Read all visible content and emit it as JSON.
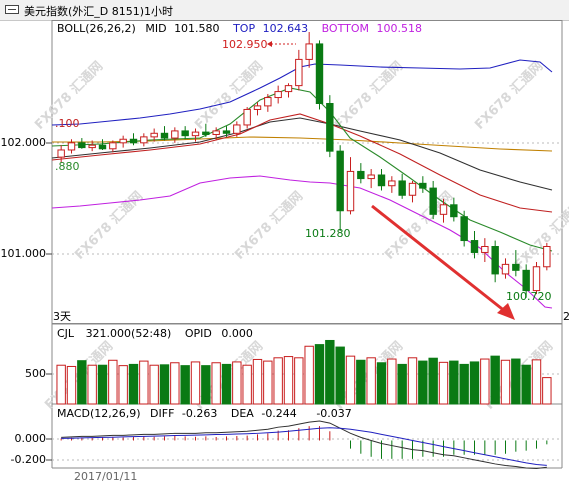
{
  "window": {
    "title": "美元指数(外汇_D 8151)1小时"
  },
  "boll": {
    "name": "BOLL(26,26,2)",
    "mid_label": "MID",
    "mid_value": "101.580",
    "top_label": "TOP",
    "top_value": "102.643",
    "bottom_label": "BOTTOM",
    "bottom_value": "100.518"
  },
  "price_axis": {
    "top": "102.000",
    "bottom": "101.000"
  },
  "edge_labels": {
    "left_top": ".100",
    "left_bottom": ".880",
    "right_corner": "2",
    "period": "3天"
  },
  "annotations": {
    "high": "102.950",
    "low1": "101.280",
    "low2": "100.720"
  },
  "volume": {
    "name": "CJL",
    "value": "321.000(52:48)",
    "opid_label": "OPID",
    "opid_value": "0.000",
    "axis": "500"
  },
  "macd": {
    "name": "MACD(12,26,9)",
    "diff_label": "DIFF",
    "diff_value": "-0.263",
    "dea_label": "DEA",
    "dea_value": "-0.244",
    "macd_value": "-0.037",
    "axis_top": "0.000",
    "axis_bottom": "-0.200"
  },
  "date_axis": {
    "date": "2017/01/11"
  },
  "watermark": "FX678 汇通网",
  "colors": {
    "up": "#c81e1e",
    "down": "#0a7a14",
    "top_band": "#2020c0",
    "bottom_band": "#c020e0",
    "mid": "#c08000",
    "annotation_high": "#d02020",
    "annotation_low": "#0a7a14",
    "arrow": "#e03030"
  },
  "chart_data": {
    "type": "candlestick",
    "title": "美元指数(外汇_D 8151)1小时",
    "ylim": [
      100.55,
      102.95
    ],
    "candles": [
      {
        "o": 101.9,
        "h": 102.0,
        "l": 101.85,
        "c": 101.96
      },
      {
        "o": 101.96,
        "h": 102.05,
        "l": 101.93,
        "c": 102.02
      },
      {
        "o": 102.02,
        "h": 102.06,
        "l": 101.97,
        "c": 101.98
      },
      {
        "o": 101.98,
        "h": 102.04,
        "l": 101.95,
        "c": 102.0
      },
      {
        "o": 102.0,
        "h": 102.05,
        "l": 101.96,
        "c": 101.97
      },
      {
        "o": 101.97,
        "h": 102.04,
        "l": 101.94,
        "c": 102.02
      },
      {
        "o": 102.02,
        "h": 102.08,
        "l": 101.98,
        "c": 102.05
      },
      {
        "o": 102.05,
        "h": 102.1,
        "l": 102.0,
        "c": 102.02
      },
      {
        "o": 102.02,
        "h": 102.1,
        "l": 101.99,
        "c": 102.07
      },
      {
        "o": 102.07,
        "h": 102.14,
        "l": 102.03,
        "c": 102.1
      },
      {
        "o": 102.1,
        "h": 102.16,
        "l": 102.04,
        "c": 102.06
      },
      {
        "o": 102.06,
        "h": 102.15,
        "l": 102.02,
        "c": 102.12
      },
      {
        "o": 102.12,
        "h": 102.16,
        "l": 102.05,
        "c": 102.08
      },
      {
        "o": 102.08,
        "h": 102.14,
        "l": 102.03,
        "c": 102.11
      },
      {
        "o": 102.11,
        "h": 102.18,
        "l": 102.07,
        "c": 102.09
      },
      {
        "o": 102.09,
        "h": 102.15,
        "l": 102.04,
        "c": 102.12
      },
      {
        "o": 102.12,
        "h": 102.16,
        "l": 102.07,
        "c": 102.1
      },
      {
        "o": 102.1,
        "h": 102.2,
        "l": 102.07,
        "c": 102.17
      },
      {
        "o": 102.17,
        "h": 102.32,
        "l": 102.14,
        "c": 102.3
      },
      {
        "o": 102.3,
        "h": 102.36,
        "l": 102.25,
        "c": 102.33
      },
      {
        "o": 102.33,
        "h": 102.43,
        "l": 102.28,
        "c": 102.4
      },
      {
        "o": 102.4,
        "h": 102.5,
        "l": 102.35,
        "c": 102.45
      },
      {
        "o": 102.45,
        "h": 102.52,
        "l": 102.4,
        "c": 102.5
      },
      {
        "o": 102.5,
        "h": 102.8,
        "l": 102.46,
        "c": 102.72
      },
      {
        "o": 102.72,
        "h": 102.95,
        "l": 102.65,
        "c": 102.85
      },
      {
        "o": 102.85,
        "h": 102.88,
        "l": 102.3,
        "c": 102.35
      },
      {
        "o": 102.35,
        "h": 102.42,
        "l": 101.9,
        "c": 101.95
      },
      {
        "o": 101.95,
        "h": 102.0,
        "l": 101.28,
        "c": 101.45
      },
      {
        "o": 101.45,
        "h": 101.9,
        "l": 101.42,
        "c": 101.78
      },
      {
        "o": 101.78,
        "h": 101.85,
        "l": 101.68,
        "c": 101.72
      },
      {
        "o": 101.72,
        "h": 101.8,
        "l": 101.64,
        "c": 101.75
      },
      {
        "o": 101.75,
        "h": 101.8,
        "l": 101.62,
        "c": 101.66
      },
      {
        "o": 101.66,
        "h": 101.74,
        "l": 101.6,
        "c": 101.7
      },
      {
        "o": 101.7,
        "h": 101.76,
        "l": 101.55,
        "c": 101.58
      },
      {
        "o": 101.58,
        "h": 101.7,
        "l": 101.52,
        "c": 101.68
      },
      {
        "o": 101.68,
        "h": 101.74,
        "l": 101.6,
        "c": 101.64
      },
      {
        "o": 101.64,
        "h": 101.7,
        "l": 101.38,
        "c": 101.42
      },
      {
        "o": 101.42,
        "h": 101.55,
        "l": 101.35,
        "c": 101.5
      },
      {
        "o": 101.5,
        "h": 101.56,
        "l": 101.36,
        "c": 101.4
      },
      {
        "o": 101.4,
        "h": 101.45,
        "l": 101.15,
        "c": 101.2
      },
      {
        "o": 101.2,
        "h": 101.28,
        "l": 101.05,
        "c": 101.1
      },
      {
        "o": 101.1,
        "h": 101.22,
        "l": 101.02,
        "c": 101.15
      },
      {
        "o": 101.15,
        "h": 101.2,
        "l": 100.85,
        "c": 100.92
      },
      {
        "o": 100.92,
        "h": 101.05,
        "l": 100.88,
        "c": 101.0
      },
      {
        "o": 101.0,
        "h": 101.12,
        "l": 100.9,
        "c": 100.95
      },
      {
        "o": 100.95,
        "h": 101.0,
        "l": 100.72,
        "c": 100.78
      },
      {
        "o": 100.78,
        "h": 101.02,
        "l": 100.75,
        "c": 100.98
      },
      {
        "o": 100.98,
        "h": 101.18,
        "l": 100.95,
        "c": 101.15
      }
    ],
    "volume": [
      470,
      455,
      525,
      470,
      470,
      530,
      465,
      480,
      520,
      470,
      475,
      500,
      465,
      510,
      465,
      500,
      480,
      510,
      470,
      540,
      520,
      560,
      575,
      560,
      700,
      720,
      770,
      690,
      580,
      530,
      560,
      500,
      545,
      480,
      560,
      520,
      555,
      505,
      520,
      480,
      510,
      545,
      580,
      530,
      545,
      470,
      535,
      320
    ],
    "volume_ylim": [
      0,
      800
    ],
    "macd_dif": [
      0.03,
      0.035,
      0.04,
      0.04,
      0.045,
      0.05,
      0.05,
      0.055,
      0.06,
      0.06,
      0.065,
      0.07,
      0.07,
      0.07,
      0.075,
      0.075,
      0.08,
      0.085,
      0.09,
      0.1,
      0.11,
      0.13,
      0.14,
      0.16,
      0.18,
      0.19,
      0.17,
      0.12,
      0.07,
      0.03,
      0.0,
      -0.03,
      -0.05,
      -0.07,
      -0.09,
      -0.1,
      -0.12,
      -0.14,
      -0.15,
      -0.17,
      -0.19,
      -0.21,
      -0.23,
      -0.245,
      -0.255,
      -0.27,
      -0.275,
      -0.263
    ],
    "macd_dea": [
      0.02,
      0.022,
      0.025,
      0.028,
      0.03,
      0.032,
      0.035,
      0.038,
      0.04,
      0.042,
      0.045,
      0.048,
      0.05,
      0.052,
      0.055,
      0.058,
      0.06,
      0.063,
      0.066,
      0.07,
      0.075,
      0.082,
      0.09,
      0.1,
      0.11,
      0.12,
      0.125,
      0.12,
      0.11,
      0.095,
      0.08,
      0.06,
      0.04,
      0.02,
      0.0,
      -0.02,
      -0.04,
      -0.06,
      -0.08,
      -0.1,
      -0.12,
      -0.14,
      -0.16,
      -0.18,
      -0.2,
      -0.22,
      -0.235,
      -0.244
    ],
    "macd_ylim": [
      -0.26,
      0.22
    ]
  }
}
